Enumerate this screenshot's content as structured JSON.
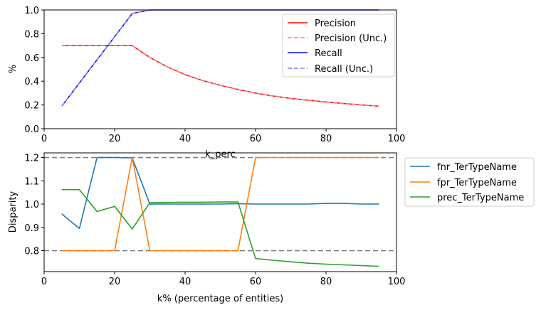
{
  "chart_data": [
    {
      "type": "line",
      "xlabel": "k_perc",
      "ylabel": "%",
      "xlim": [
        0,
        100
      ],
      "ylim": [
        0,
        1.0
      ],
      "xticks": [
        "0",
        "20",
        "40",
        "60",
        "80",
        "100"
      ],
      "yticks": [
        "0.0",
        "0.2",
        "0.4",
        "0.6",
        "0.8",
        "1.0"
      ],
      "legend_placement": "top-right",
      "x": [
        5,
        10,
        15,
        20,
        25,
        30,
        35,
        40,
        45,
        50,
        55,
        60,
        65,
        70,
        75,
        80,
        85,
        90,
        95
      ],
      "series": [
        {
          "name": "Precision",
          "color": "#ff0000",
          "dash": false,
          "values": [
            0.7,
            0.7,
            0.7,
            0.7,
            0.7,
            0.6,
            0.52,
            0.455,
            0.405,
            0.365,
            0.33,
            0.3,
            0.275,
            0.255,
            0.24,
            0.225,
            0.212,
            0.2,
            0.19
          ]
        },
        {
          "name": "Precision (Unc.)",
          "color": "#ff7f7f",
          "dash": true,
          "values": [
            0.7,
            0.7,
            0.7,
            0.7,
            0.7,
            0.6,
            0.52,
            0.455,
            0.405,
            0.365,
            0.33,
            0.3,
            0.275,
            0.255,
            0.24,
            0.225,
            0.212,
            0.2,
            0.19
          ]
        },
        {
          "name": "Recall",
          "color": "#0000ff",
          "dash": false,
          "values": [
            0.19,
            0.385,
            0.58,
            0.775,
            0.97,
            1.0,
            1.0,
            1.0,
            1.0,
            1.0,
            1.0,
            1.0,
            1.0,
            1.0,
            1.0,
            1.0,
            1.0,
            1.0,
            1.0
          ]
        },
        {
          "name": "Recall (Unc.)",
          "color": "#7f7fff",
          "dash": true,
          "values": [
            0.19,
            0.385,
            0.58,
            0.775,
            0.97,
            1.0,
            1.0,
            1.0,
            1.0,
            1.0,
            1.0,
            1.0,
            1.0,
            1.0,
            1.0,
            1.0,
            1.0,
            1.0,
            1.0
          ]
        }
      ]
    },
    {
      "type": "line",
      "xlabel": "k% (percentage of entities)",
      "ylabel": "Disparity",
      "xlim": [
        0,
        100
      ],
      "ylim": [
        0.71,
        1.22
      ],
      "xticks": [
        "0",
        "20",
        "40",
        "60",
        "80",
        "100"
      ],
      "yticks": [
        "0.8",
        "0.9",
        "1.0",
        "1.1",
        "1.2"
      ],
      "reference_lines": [
        0.8,
        1.2
      ],
      "legend_placement": "outside-right",
      "x": [
        5,
        10,
        15,
        20,
        25,
        30,
        35,
        40,
        45,
        50,
        55,
        60,
        65,
        70,
        75,
        80,
        85,
        90,
        95
      ],
      "series": [
        {
          "name": "fnr_TerTypeName",
          "color": "#1f77b4",
          "values": [
            0.958,
            0.895,
            1.2,
            1.2,
            1.198,
            1.0,
            1.0,
            1.0,
            1.0,
            1.0,
            1.002,
            1.0,
            1.0,
            1.0,
            1.0,
            1.003,
            1.003,
            1.0,
            1.0
          ]
        },
        {
          "name": "fpr_TerTypeName",
          "color": "#ff7f0e",
          "values": [
            0.8,
            0.8,
            0.8,
            0.8,
            1.2,
            0.8,
            0.8,
            0.8,
            0.8,
            0.8,
            0.8,
            1.2,
            1.2,
            1.2,
            1.2,
            1.2,
            1.2,
            1.2,
            1.2
          ]
        },
        {
          "name": "prec_TerTypeName",
          "color": "#2ca02c",
          "values": [
            1.062,
            1.062,
            0.968,
            0.99,
            0.893,
            1.006,
            1.007,
            1.008,
            1.008,
            1.009,
            1.009,
            0.766,
            0.759,
            0.752,
            0.746,
            0.742,
            0.739,
            0.736,
            0.733
          ]
        }
      ]
    }
  ]
}
